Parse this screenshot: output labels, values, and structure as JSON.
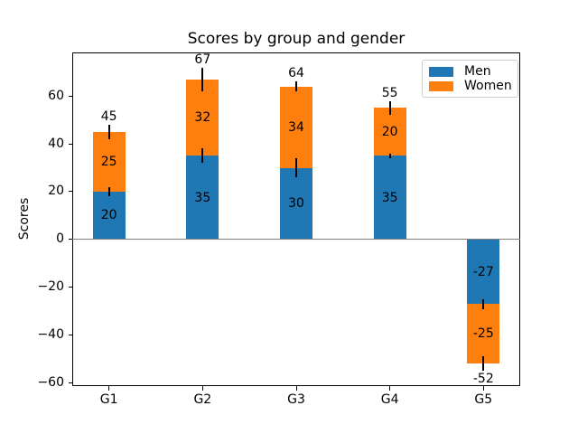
{
  "chart_data": {
    "type": "bar",
    "stacked": true,
    "title": "Scores by group and gender",
    "xlabel": "",
    "ylabel": "Scores",
    "categories": [
      "G1",
      "G2",
      "G3",
      "G4",
      "G5"
    ],
    "series": [
      {
        "name": "Men",
        "color": "#1f77b4",
        "values": [
          20,
          35,
          30,
          35,
          -27
        ],
        "errors": [
          2,
          3,
          4,
          1,
          2
        ]
      },
      {
        "name": "Women",
        "color": "#ff7f0e",
        "values": [
          25,
          32,
          34,
          20,
          -25
        ],
        "errors": [
          3,
          5,
          2,
          3,
          3
        ]
      }
    ],
    "totals": [
      45,
      67,
      64,
      55,
      -52
    ],
    "yticks": [
      -60,
      -40,
      -20,
      0,
      20,
      40,
      60
    ],
    "ytick_labels": [
      "−60",
      "−40",
      "−20",
      "0",
      "20",
      "40",
      "60"
    ],
    "ylim": [
      -61.4,
      78.4
    ],
    "xlim": [
      -0.3925,
      4.3925
    ],
    "bar_width": 0.35,
    "grid": false,
    "legend": {
      "position": "upper right",
      "entries": [
        "Men",
        "Women"
      ]
    },
    "colors": {
      "error_bar": "#000000",
      "zero_line": "#808080",
      "axes_edge": "#000000",
      "legend_edge": "#cccccc",
      "text": "#000000"
    }
  }
}
